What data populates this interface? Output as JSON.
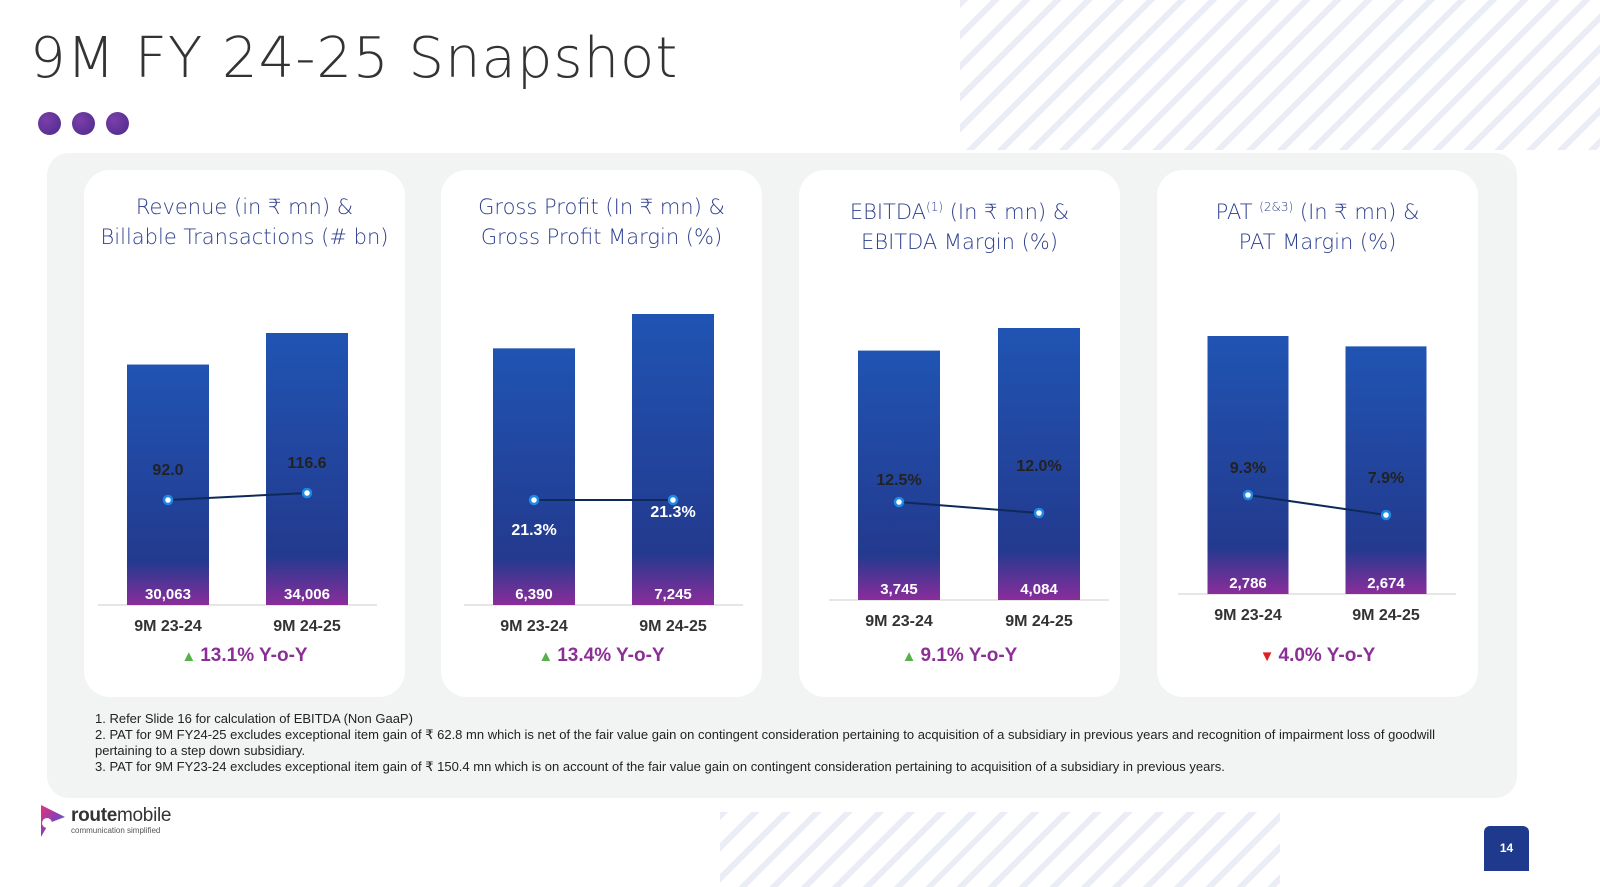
{
  "title": "9M FY 24-25 Snapshot",
  "colors": {
    "bar_top": "#2054b3",
    "bar_bottom": "#233a8e",
    "bar_base": "#8a2d9b",
    "line": "#0e2a5a",
    "marker": "#1e88e5",
    "title_text": "#2e3f8e",
    "yoy_text": "#8b2f96",
    "arrow_up": "#57b04a",
    "arrow_down": "#e02020"
  },
  "cards": [
    {
      "title_1": "Revenue (in ₹ mn) &",
      "title_2": "Billable Transactions (# bn)",
      "sup": "",
      "after_sup": "",
      "yoy": "13.1% Y-o-Y",
      "direction": "up"
    },
    {
      "title_1": "Gross Profit  (In ₹ mn) &",
      "title_2": "Gross Profit Margin (%)",
      "sup": "",
      "after_sup": "",
      "yoy": "13.4% Y-o-Y",
      "direction": "up"
    },
    {
      "title_1": "EBITDA",
      "title_2": "EBITDA Margin (%)",
      "sup": "(1)",
      "after_sup": " (In ₹ mn) &",
      "yoy": "9.1% Y-o-Y",
      "direction": "up"
    },
    {
      "title_1": "PAT ",
      "title_2": "PAT Margin (%)",
      "sup": "(2&3)",
      "after_sup": " (In ₹ mn) &",
      "yoy": "4.0% Y-o-Y",
      "direction": "down"
    }
  ],
  "chart_data": [
    {
      "type": "bar",
      "title": "Revenue (in ₹ mn) & Billable Transactions (# bn)",
      "categories": [
        "9M 23-24",
        "9M 24-25"
      ],
      "series": [
        {
          "name": "Revenue (in ₹ mn)",
          "values": [
            30063,
            34006
          ],
          "labels": [
            "30,063",
            "34,006"
          ]
        },
        {
          "name": "Billable Transactions (# bn)",
          "type": "line",
          "values": [
            92.0,
            116.6
          ],
          "labels": [
            "92.0",
            "116.6"
          ]
        }
      ]
    },
    {
      "type": "bar",
      "title": "Gross Profit (In ₹ mn) & Gross Profit Margin (%)",
      "categories": [
        "9M 23-24",
        "9M 24-25"
      ],
      "series": [
        {
          "name": "Gross Profit (In ₹ mn)",
          "values": [
            6390,
            7245
          ],
          "labels": [
            "6,390",
            "7,245"
          ]
        },
        {
          "name": "Gross Profit Margin (%)",
          "type": "line",
          "values": [
            21.3,
            21.3
          ],
          "labels": [
            "21.3%",
            "21.3%"
          ]
        }
      ]
    },
    {
      "type": "bar",
      "title": "EBITDA (In ₹ mn) & EBITDA Margin (%)",
      "categories": [
        "9M 23-24",
        "9M 24-25"
      ],
      "series": [
        {
          "name": "EBITDA (In ₹ mn)",
          "values": [
            3745,
            4084
          ],
          "labels": [
            "3,745",
            "4,084"
          ]
        },
        {
          "name": "EBITDA Margin (%)",
          "type": "line",
          "values": [
            12.5,
            12.0
          ],
          "labels": [
            "12.5%",
            "12.0%"
          ]
        }
      ]
    },
    {
      "type": "bar",
      "title": "PAT (In ₹ mn) & PAT Margin (%)",
      "categories": [
        "9M 23-24",
        "9M 24-25"
      ],
      "series": [
        {
          "name": "PAT (In ₹ mn)",
          "values": [
            2786,
            2674
          ],
          "labels": [
            "2,786",
            "2,674"
          ]
        },
        {
          "name": "PAT Margin (%)",
          "type": "line",
          "values": [
            9.3,
            7.9
          ],
          "labels": [
            "9.3%",
            "7.9%"
          ]
        }
      ]
    }
  ],
  "footnotes": [
    "1. Refer Slide 16 for calculation of EBITDA (Non GaaP)",
    "2. PAT for 9M FY24-25 excludes exceptional item gain of ₹ 62.8 mn which is net of the fair value gain on contingent consideration pertaining to acquisition of a subsidiary in previous years and recognition of impairment loss of goodwill pertaining to a step down subsidiary.",
    "3. PAT for 9M FY23-24 excludes exceptional item gain of ₹ 150.4 mn which is on account of the fair value gain on contingent consideration pertaining to acquisition of a subsidiary in previous years."
  ],
  "logo": {
    "word_bold": "route",
    "word_light": "mobile",
    "tagline": "communication simplified"
  },
  "page_number": "14"
}
